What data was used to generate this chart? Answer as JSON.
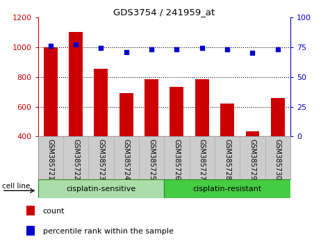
{
  "title": "GDS3754 / 241959_at",
  "samples": [
    "GSM385721",
    "GSM385722",
    "GSM385723",
    "GSM385724",
    "GSM385725",
    "GSM385726",
    "GSM385727",
    "GSM385728",
    "GSM385729",
    "GSM385730"
  ],
  "counts": [
    1000,
    1100,
    855,
    690,
    785,
    735,
    785,
    620,
    435,
    660
  ],
  "percentile_ranks": [
    76,
    77,
    74,
    71,
    73,
    73,
    74,
    73,
    70,
    73
  ],
  "ylim_left": [
    400,
    1200
  ],
  "ylim_right": [
    0,
    100
  ],
  "yticks_left": [
    400,
    600,
    800,
    1000,
    1200
  ],
  "yticks_right": [
    0,
    25,
    50,
    75,
    100
  ],
  "bar_color": "#cc0000",
  "dot_color": "#0000cc",
  "grid_color": "#000000",
  "group1_label": "cisplatin-sensitive",
  "group2_label": "cisplatin-resistant",
  "cell_line_label": "cell line",
  "legend_count": "count",
  "legend_percentile": "percentile rank within the sample",
  "bg_color": "#ffffff",
  "tick_area_color": "#cccccc",
  "group_color1": "#aaddaa",
  "group_color2": "#44cc44",
  "group_edge_color": "#228822"
}
